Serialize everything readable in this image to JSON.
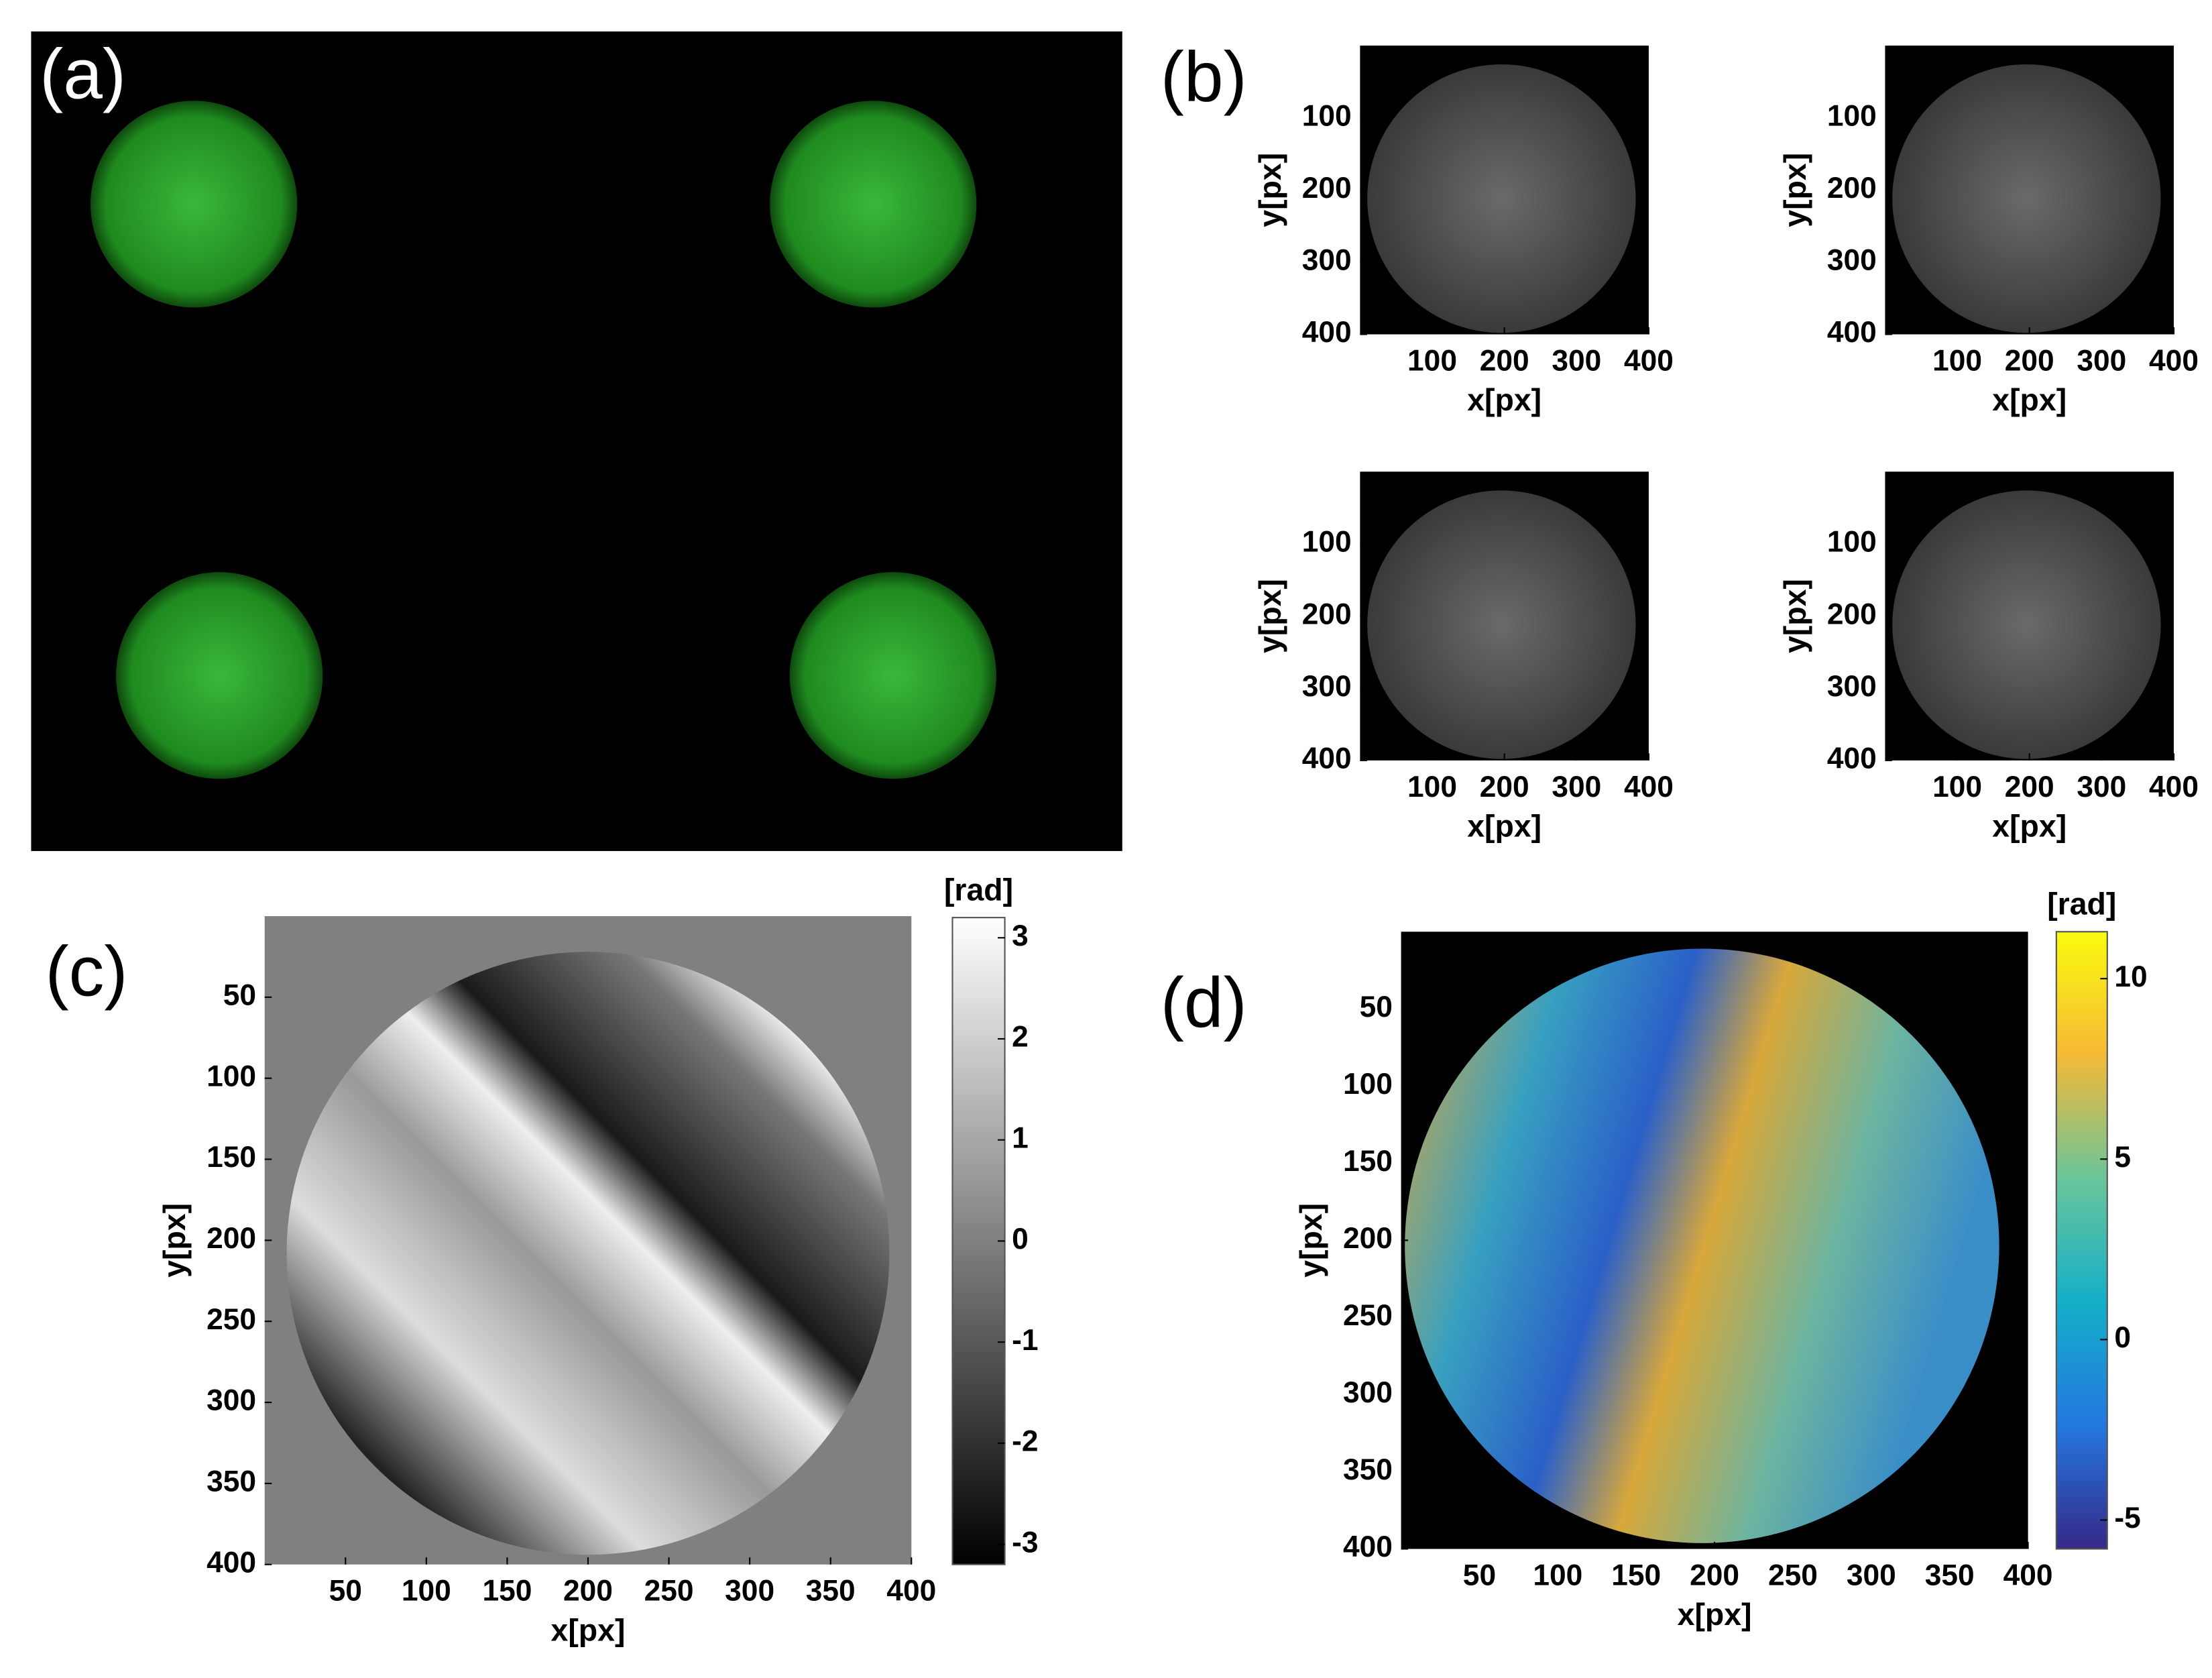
{
  "panels": [
    {
      "label": "(a)"
    },
    {
      "label": "(b)",
      "subplots": [
        {
          "xlim": [
            0,
            400
          ],
          "ylim": [
            0,
            400
          ],
          "xticks": [
            100,
            200,
            300,
            400
          ],
          "yticks": [
            100,
            200,
            300,
            400
          ],
          "xlabel": "x[px]",
          "ylabel": "y[px]"
        },
        {
          "xlim": [
            0,
            400
          ],
          "ylim": [
            0,
            400
          ],
          "xticks": [
            100,
            200,
            300,
            400
          ],
          "yticks": [
            100,
            200,
            300,
            400
          ],
          "xlabel": "x[px]",
          "ylabel": "y[px]"
        },
        {
          "xlim": [
            0,
            400
          ],
          "ylim": [
            0,
            400
          ],
          "xticks": [
            100,
            200,
            300,
            400
          ],
          "yticks": [
            100,
            200,
            300,
            400
          ],
          "xlabel": "x[px]",
          "ylabel": "y[px]"
        },
        {
          "xlim": [
            0,
            400
          ],
          "ylim": [
            0,
            400
          ],
          "xticks": [
            100,
            200,
            300,
            400
          ],
          "yticks": [
            100,
            200,
            300,
            400
          ],
          "xlabel": "x[px]",
          "ylabel": "y[px]"
        }
      ]
    },
    {
      "label": "(c)",
      "xlim": [
        0,
        400
      ],
      "ylim": [
        0,
        400
      ],
      "xticks": [
        50,
        100,
        150,
        200,
        250,
        300,
        350,
        400
      ],
      "yticks": [
        50,
        100,
        150,
        200,
        250,
        300,
        350,
        400
      ],
      "xlabel": "x[px]",
      "ylabel": "y[px]",
      "colorbar": {
        "label": "[rad]",
        "lim": [
          -3.2,
          3.2
        ],
        "ticks": [
          3,
          2,
          1,
          0,
          -1,
          -2,
          -3
        ]
      }
    },
    {
      "label": "(d)",
      "xlim": [
        0,
        400
      ],
      "ylim": [
        0,
        400
      ],
      "xticks": [
        50,
        100,
        150,
        200,
        250,
        300,
        350,
        400
      ],
      "yticks": [
        50,
        100,
        150,
        200,
        250,
        300,
        350,
        400
      ],
      "xlabel": "x[px]",
      "ylabel": "y[px]",
      "colorbar": {
        "label": "[rad]",
        "lim": [
          -5.8,
          11.3
        ],
        "ticks": [
          10,
          5,
          0,
          -5
        ]
      }
    }
  ]
}
